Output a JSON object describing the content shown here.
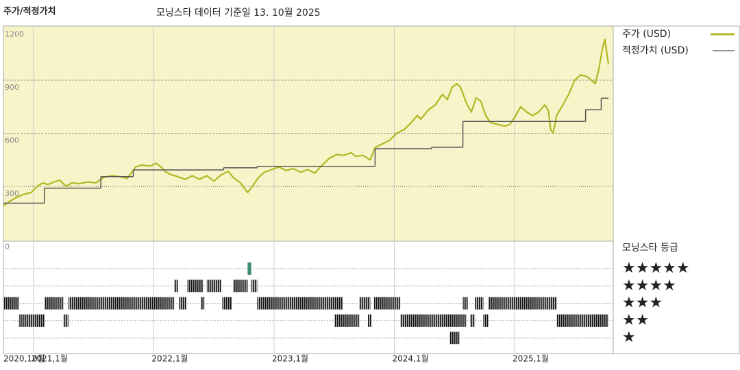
{
  "chart_data": {
    "type": "line",
    "ylabel": "주가/적정가치",
    "title": "모닝스타 데이터 기준일 13. 10월 2025",
    "legend": "right",
    "grid": true,
    "xlim": [
      2020.75,
      2025.82
    ],
    "ylim": [
      0,
      1200
    ],
    "yticks": [
      0,
      300,
      600,
      900,
      1200
    ],
    "xticks": [
      {
        "value": 2020.75,
        "label": "2020,10월"
      },
      {
        "value": 2021,
        "label": "2021,1월"
      },
      {
        "value": 2022,
        "label": "2022,1월"
      },
      {
        "value": 2023,
        "label": "2023,1월"
      },
      {
        "value": 2024,
        "label": "2024,1월"
      },
      {
        "value": 2025,
        "label": "2025,1월"
      }
    ],
    "series": [
      {
        "name": "주가 (USD)",
        "color": "#b3b624",
        "x": [
          2020.75,
          2020.8,
          2020.85,
          2020.92,
          2020.98,
          2021.03,
          2021.08,
          2021.12,
          2021.17,
          2021.22,
          2021.27,
          2021.32,
          2021.38,
          2021.45,
          2021.52,
          2021.58,
          2021.65,
          2021.72,
          2021.78,
          2021.85,
          2021.9,
          2021.97,
          2022.02,
          2022.06,
          2022.1,
          2022.15,
          2022.2,
          2022.26,
          2022.32,
          2022.38,
          2022.44,
          2022.5,
          2022.56,
          2022.62,
          2022.66,
          2022.72,
          2022.78,
          2022.82,
          2022.87,
          2022.92,
          2022.98,
          2023.04,
          2023.1,
          2023.16,
          2023.22,
          2023.28,
          2023.34,
          2023.4,
          2023.46,
          2023.52,
          2023.58,
          2023.64,
          2023.68,
          2023.74,
          2023.8,
          2023.84,
          2023.9,
          2023.96,
          2024.02,
          2024.08,
          2024.14,
          2024.19,
          2024.22,
          2024.28,
          2024.34,
          2024.4,
          2024.44,
          2024.48,
          2024.52,
          2024.55,
          2024.6,
          2024.64,
          2024.68,
          2024.72,
          2024.76,
          2024.8,
          2024.86,
          2024.92,
          2024.96,
          2025.0,
          2025.05,
          2025.1,
          2025.15,
          2025.2,
          2025.25,
          2025.28,
          2025.3,
          2025.32,
          2025.35,
          2025.4,
          2025.45,
          2025.5,
          2025.55,
          2025.6,
          2025.64,
          2025.67,
          2025.7,
          2025.73,
          2025.75,
          2025.78
        ],
        "values": [
          190,
          215,
          235,
          255,
          265,
          300,
          320,
          310,
          325,
          335,
          300,
          320,
          315,
          325,
          320,
          350,
          360,
          355,
          345,
          410,
          420,
          415,
          430,
          410,
          380,
          365,
          355,
          340,
          360,
          340,
          360,
          330,
          365,
          385,
          350,
          320,
          265,
          300,
          350,
          380,
          395,
          410,
          390,
          400,
          380,
          395,
          375,
          420,
          460,
          480,
          475,
          490,
          470,
          475,
          450,
          520,
          540,
          560,
          600,
          620,
          660,
          700,
          680,
          730,
          760,
          820,
          790,
          860,
          880,
          860,
          770,
          720,
          800,
          780,
          700,
          660,
          650,
          640,
          650,
          690,
          750,
          720,
          700,
          720,
          760,
          730,
          620,
          600,
          700,
          760,
          820,
          900,
          930,
          920,
          900,
          880,
          960,
          1080,
          1130,
          990
        ]
      },
      {
        "name": "적정가치 (USD)",
        "color": "#555555",
        "step": true,
        "x": [
          2020.75,
          2021.09,
          2021.56,
          2021.83,
          2022.58,
          2022.86,
          2023.84,
          2024.31,
          2024.57,
          2025.59,
          2025.72
        ],
        "values": [
          205,
          290,
          355,
          393,
          405,
          413,
          513,
          521,
          667,
          733,
          798
        ]
      }
    ],
    "rating_panel": {
      "title": "모닝스타 등급",
      "levels": [
        {
          "value": 5,
          "label": "★★★★★"
        },
        {
          "value": 4,
          "label": "★★★★"
        },
        {
          "value": 3,
          "label": "★★★"
        },
        {
          "value": 2,
          "label": "★★"
        },
        {
          "value": 1,
          "label": "★"
        }
      ],
      "segments": [
        {
          "start": 2020.75,
          "end": 2020.88,
          "rating": 3
        },
        {
          "start": 2020.88,
          "end": 2021.09,
          "rating": 2
        },
        {
          "start": 2021.09,
          "end": 2021.25,
          "rating": 3
        },
        {
          "start": 2021.25,
          "end": 2021.29,
          "rating": 2
        },
        {
          "start": 2021.29,
          "end": 2022.17,
          "rating": 3
        },
        {
          "start": 2022.17,
          "end": 2022.2,
          "rating": 4
        },
        {
          "start": 2022.21,
          "end": 2022.27,
          "rating": 3
        },
        {
          "start": 2022.28,
          "end": 2022.41,
          "rating": 4
        },
        {
          "start": 2022.39,
          "end": 2022.42,
          "rating": 3
        },
        {
          "start": 2022.44,
          "end": 2022.56,
          "rating": 4
        },
        {
          "start": 2022.57,
          "end": 2022.65,
          "rating": 3
        },
        {
          "start": 2022.66,
          "end": 2022.78,
          "rating": 4
        },
        {
          "start": 2022.78,
          "end": 2022.81,
          "rating": 5
        },
        {
          "start": 2022.81,
          "end": 2022.86,
          "rating": 4
        },
        {
          "start": 2022.86,
          "end": 2023.57,
          "rating": 3
        },
        {
          "start": 2023.5,
          "end": 2023.71,
          "rating": 2
        },
        {
          "start": 2023.71,
          "end": 2023.8,
          "rating": 3
        },
        {
          "start": 2023.78,
          "end": 2023.81,
          "rating": 2
        },
        {
          "start": 2023.83,
          "end": 2024.05,
          "rating": 3
        },
        {
          "start": 2024.05,
          "end": 2024.55,
          "rating": 2
        },
        {
          "start": 2024.46,
          "end": 2024.54,
          "rating": 1
        },
        {
          "start": 2024.55,
          "end": 2024.6,
          "rating": 2
        },
        {
          "start": 2024.57,
          "end": 2024.61,
          "rating": 3
        },
        {
          "start": 2024.63,
          "end": 2024.67,
          "rating": 2
        },
        {
          "start": 2024.67,
          "end": 2024.74,
          "rating": 3
        },
        {
          "start": 2024.74,
          "end": 2024.78,
          "rating": 2
        },
        {
          "start": 2024.78,
          "end": 2025.35,
          "rating": 3
        },
        {
          "start": 2025.35,
          "end": 2025.78,
          "rating": 2
        }
      ]
    }
  }
}
